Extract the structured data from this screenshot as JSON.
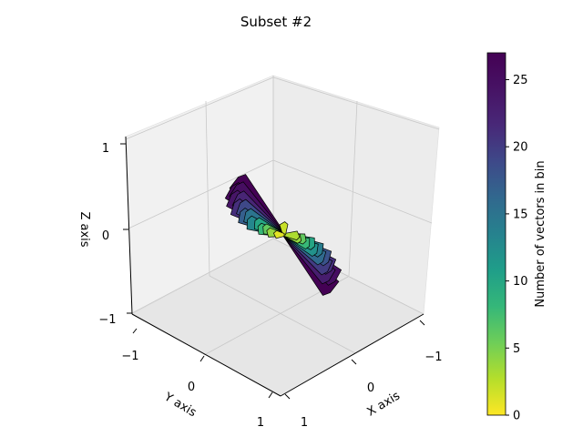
{
  "chart_data": {
    "type": "3d-bar-histogram",
    "title": "Subset #2",
    "xlabel": "X axis",
    "ylabel": "Y axis",
    "zlabel": "Z axis",
    "xlim": [
      -1,
      1
    ],
    "ylim": [
      -1,
      1
    ],
    "zlim": [
      -1,
      1
    ],
    "x_ticks": [
      "1",
      "0",
      "−1"
    ],
    "y_ticks": [
      "−1",
      "0",
      "1"
    ],
    "z_ticks": [
      "1",
      "0",
      "−1"
    ],
    "grid": true,
    "colorbar": {
      "label": "Number of vectors in bin",
      "colormap": "viridis",
      "range": [
        0,
        27
      ],
      "ticks": [
        "0",
        "5",
        "10",
        "15",
        "20",
        "25"
      ]
    },
    "bins": [
      {
        "direction": "upper-left",
        "count": 27
      },
      {
        "direction": "upper-left",
        "count": 26
      },
      {
        "direction": "upper-left",
        "count": 25
      },
      {
        "direction": "upper-left",
        "count": 24
      },
      {
        "direction": "upper-left",
        "count": 22
      },
      {
        "direction": "upper-left",
        "count": 21
      },
      {
        "direction": "upper-left",
        "count": 19
      },
      {
        "direction": "upper-left",
        "count": 17
      },
      {
        "direction": "upper-left",
        "count": 15
      },
      {
        "direction": "upper-left",
        "count": 13
      },
      {
        "direction": "upper-left",
        "count": 10
      },
      {
        "direction": "upper-left",
        "count": 8
      },
      {
        "direction": "upper-left",
        "count": 6
      },
      {
        "direction": "upper-left",
        "count": 4
      },
      {
        "direction": "lower-right",
        "count": 27
      },
      {
        "direction": "lower-right",
        "count": 25
      },
      {
        "direction": "lower-right",
        "count": 23
      },
      {
        "direction": "lower-right",
        "count": 21
      },
      {
        "direction": "lower-right",
        "count": 20
      },
      {
        "direction": "lower-right",
        "count": 18
      },
      {
        "direction": "lower-right",
        "count": 16
      },
      {
        "direction": "lower-right",
        "count": 14
      },
      {
        "direction": "lower-right",
        "count": 12
      },
      {
        "direction": "lower-right",
        "count": 10
      },
      {
        "direction": "lower-right",
        "count": 8
      },
      {
        "direction": "lower-right",
        "count": 6
      },
      {
        "direction": "lower-right",
        "count": 4
      },
      {
        "direction": "center",
        "count": 3
      },
      {
        "direction": "center",
        "count": 2
      },
      {
        "direction": "center",
        "count": 1
      }
    ]
  }
}
